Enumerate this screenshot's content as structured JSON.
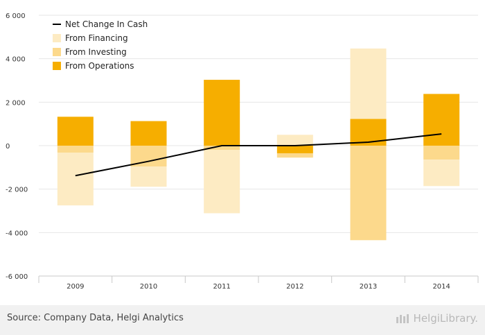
{
  "chart_data": {
    "type": "bar",
    "stacked": true,
    "categories": [
      "2009",
      "2010",
      "2011",
      "2012",
      "2013",
      "2014"
    ],
    "series": [
      {
        "name": "From Operations",
        "type": "bar",
        "color": "#f6ae00",
        "values": [
          1330,
          1130,
          3030,
          -350,
          1230,
          2380
        ]
      },
      {
        "name": "From Investing",
        "type": "bar",
        "color": "#fcd98c",
        "values": [
          -320,
          -960,
          -200,
          -200,
          -4350,
          -640
        ]
      },
      {
        "name": "From Financing",
        "type": "bar",
        "color": "#fdebc3",
        "values": [
          -2430,
          -930,
          -2910,
          500,
          3240,
          -1220
        ]
      },
      {
        "name": "Net Change In Cash",
        "type": "line",
        "color": "#000000",
        "values": [
          -1380,
          -720,
          0,
          0,
          160,
          540
        ]
      }
    ],
    "y_ticks": [
      "6 000",
      "4 000",
      "2 000",
      "0",
      "-2 000",
      "-4 000",
      "-6 000"
    ],
    "ylim": [
      -6000,
      6000
    ],
    "grid": true,
    "legend_position": "top-left",
    "legend_order": [
      "Net Change In Cash",
      "From Financing",
      "From Investing",
      "From Operations"
    ]
  },
  "footer": {
    "source": "Source: Company Data, Helgi Analytics",
    "brand": "HelgiLibrary."
  }
}
